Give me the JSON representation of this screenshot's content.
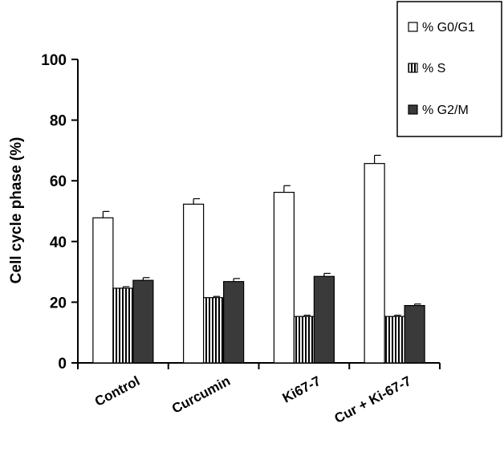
{
  "chart_data": {
    "type": "bar",
    "title": "",
    "xlabel": "",
    "ylabel": "Cell cycle phase (%)",
    "ylim": [
      0,
      100
    ],
    "yticks": [
      0,
      20,
      40,
      60,
      80,
      100
    ],
    "grid": false,
    "legend_position": "top-right",
    "categories": [
      "Control",
      "Curcumin",
      "Ki67-7",
      "Cur + Ki-67-7"
    ],
    "series": [
      {
        "name": "% G0/G1",
        "pattern": "white",
        "values": [
          47.8,
          52.3,
          56.2,
          65.7
        ],
        "errors": [
          2.1,
          1.8,
          2.2,
          2.7
        ]
      },
      {
        "name": "% S",
        "pattern": "vertical-stripes",
        "values": [
          24.6,
          21.5,
          15.3,
          15.3
        ],
        "errors": [
          0.5,
          0.4,
          0.4,
          0.4
        ]
      },
      {
        "name": "% G2/M",
        "pattern": "dark",
        "values": [
          27.2,
          26.8,
          28.5,
          18.9
        ],
        "errors": [
          0.9,
          1.0,
          1.0,
          0.5
        ]
      }
    ],
    "colors": {
      "white_fill": "#ffffff",
      "dark_fill": "#3a3a3a",
      "stroke": "#000000"
    }
  }
}
